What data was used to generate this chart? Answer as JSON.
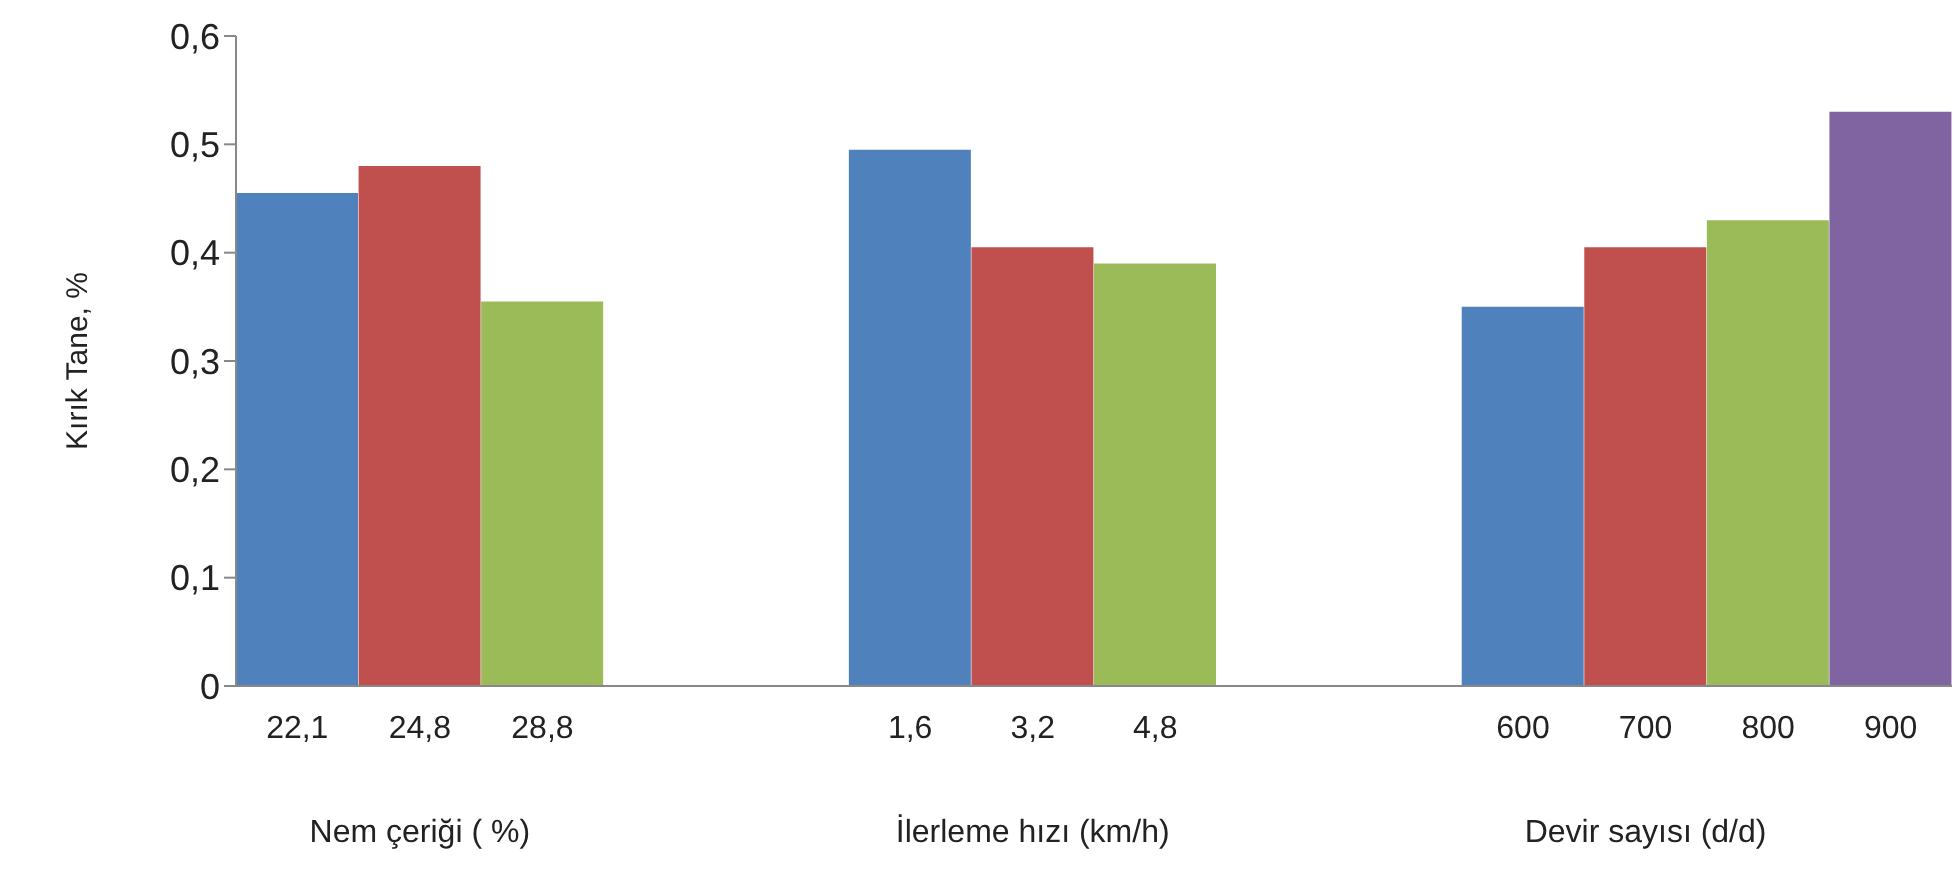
{
  "chart_data": {
    "type": "bar",
    "ylabel": "Kırık Tane, %",
    "categories": [
      "22,1",
      "24,8",
      "28,8",
      null,
      null,
      "1,6",
      "3,2",
      "4,8",
      null,
      null,
      "600",
      "700",
      "800",
      "900"
    ],
    "values": [
      0.455,
      0.48,
      0.355,
      null,
      null,
      0.495,
      0.405,
      0.39,
      null,
      null,
      0.35,
      0.405,
      0.43,
      0.53
    ],
    "colors": [
      "#4f81bd",
      "#c0504d",
      "#9bbb59",
      null,
      null,
      "#4f81bd",
      "#c0504d",
      "#9bbb59",
      null,
      null,
      "#4f81bd",
      "#c0504d",
      "#9bbb59",
      "#8064a2"
    ],
    "ylim": [
      0,
      0.6
    ],
    "yticks": [
      0,
      {
        "value": 0.1,
        "label": "0,1"
      },
      {
        "value": 0.2,
        "label": "0,2"
      },
      {
        "value": 0.3,
        "label": "0,3"
      },
      {
        "value": 0.4,
        "label": "0,4"
      },
      {
        "value": 0.5,
        "label": "0,5"
      },
      {
        "value": 0.6,
        "label": "0,6"
      }
    ],
    "annotations": [
      "Nem çeriği ( %)",
      "İlerleme hızı (km/h)",
      "Devir sayısı (d/d)"
    ],
    "grid": false,
    "legend": false
  }
}
